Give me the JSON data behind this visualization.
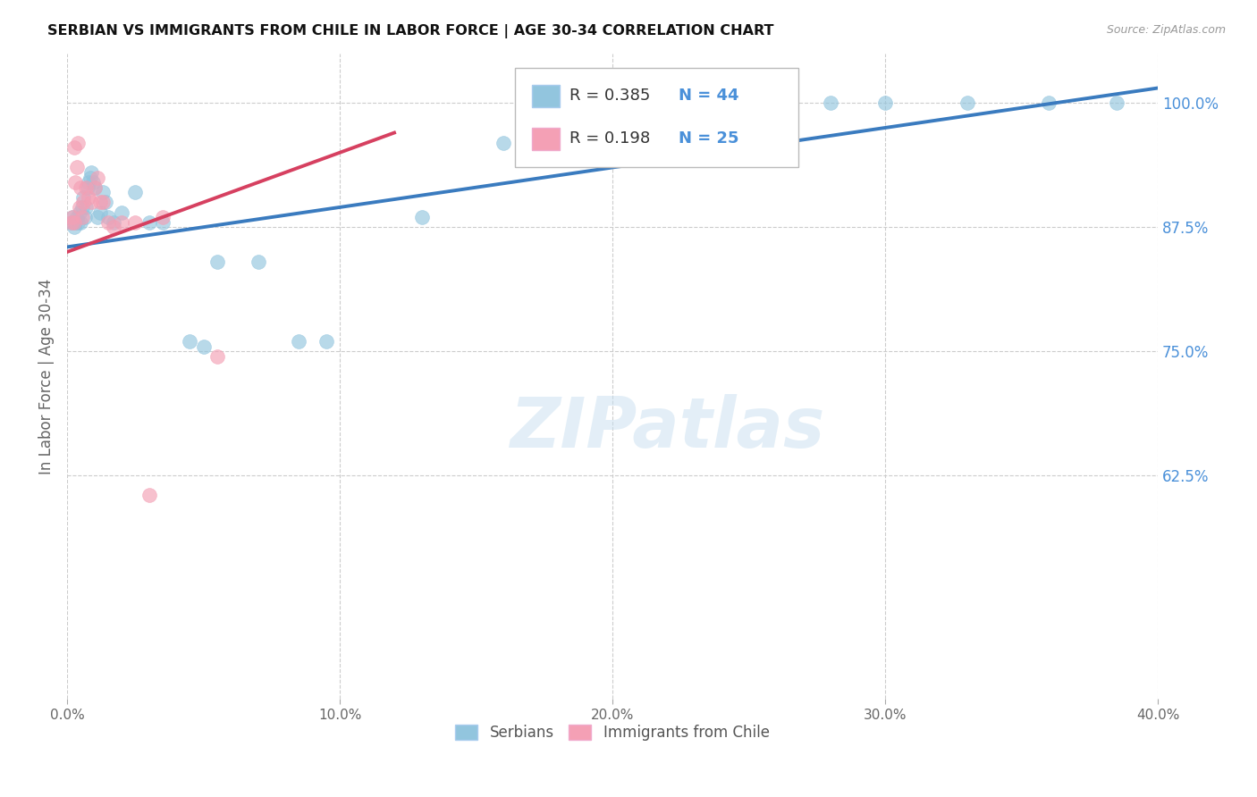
{
  "title": "SERBIAN VS IMMIGRANTS FROM CHILE IN LABOR FORCE | AGE 30-34 CORRELATION CHART",
  "source": "Source: ZipAtlas.com",
  "xlabel_vals": [
    0.0,
    10.0,
    20.0,
    30.0,
    40.0
  ],
  "ylabel_vals": [
    100.0,
    87.5,
    75.0,
    62.5
  ],
  "ylabel_label": "In Labor Force | Age 30-34",
  "xlim": [
    0.0,
    40.0
  ],
  "ylim": [
    40.0,
    105.0
  ],
  "watermark": "ZIPatlas",
  "blue_R": 0.385,
  "blue_N": 44,
  "pink_R": 0.198,
  "pink_N": 25,
  "blue_color": "#92c5de",
  "pink_color": "#f4a0b5",
  "blue_line_color": "#3a7bbf",
  "pink_line_color": "#d64060",
  "blue_label": "Serbians",
  "pink_label": "Immigrants from Chile",
  "blue_x": [
    0.15,
    0.2,
    0.25,
    0.3,
    0.35,
    0.4,
    0.45,
    0.5,
    0.55,
    0.6,
    0.65,
    0.7,
    0.75,
    0.8,
    0.85,
    0.9,
    0.95,
    1.0,
    1.1,
    1.2,
    1.3,
    1.4,
    1.5,
    1.7,
    2.0,
    2.5,
    3.0,
    3.5,
    4.5,
    5.0,
    5.5,
    7.0,
    8.5,
    9.5,
    13.0,
    16.0,
    20.0,
    22.0,
    25.0,
    28.0,
    30.0,
    33.0,
    36.0,
    38.5
  ],
  "blue_y": [
    88.0,
    88.5,
    87.5,
    88.0,
    88.5,
    88.0,
    89.0,
    88.0,
    89.5,
    90.5,
    88.5,
    89.5,
    91.5,
    92.0,
    92.5,
    93.0,
    92.0,
    91.5,
    88.5,
    89.0,
    91.0,
    90.0,
    88.5,
    88.0,
    89.0,
    91.0,
    88.0,
    88.0,
    76.0,
    75.5,
    84.0,
    84.0,
    76.0,
    76.0,
    88.5,
    96.0,
    100.0,
    100.0,
    100.0,
    100.0,
    100.0,
    100.0,
    100.0,
    100.0
  ],
  "pink_x": [
    0.15,
    0.2,
    0.25,
    0.3,
    0.35,
    0.4,
    0.5,
    0.6,
    0.7,
    0.8,
    0.9,
    1.0,
    1.1,
    1.3,
    1.5,
    1.7,
    2.0,
    2.5,
    3.5,
    5.5,
    0.25,
    0.45,
    0.55,
    3.0,
    1.2
  ],
  "pink_y": [
    88.0,
    88.5,
    95.5,
    92.0,
    93.5,
    96.0,
    91.5,
    90.0,
    91.5,
    90.5,
    90.0,
    91.5,
    92.5,
    90.0,
    88.0,
    87.5,
    88.0,
    88.0,
    88.5,
    74.5,
    88.0,
    89.5,
    88.5,
    60.5,
    90.0
  ],
  "blue_trend_x0": 0.0,
  "blue_trend_y0": 85.5,
  "blue_trend_x1": 40.0,
  "blue_trend_y1": 101.5,
  "pink_trend_x0": 0.0,
  "pink_trend_y0": 85.0,
  "pink_trend_x1": 12.0,
  "pink_trend_y1": 97.0
}
